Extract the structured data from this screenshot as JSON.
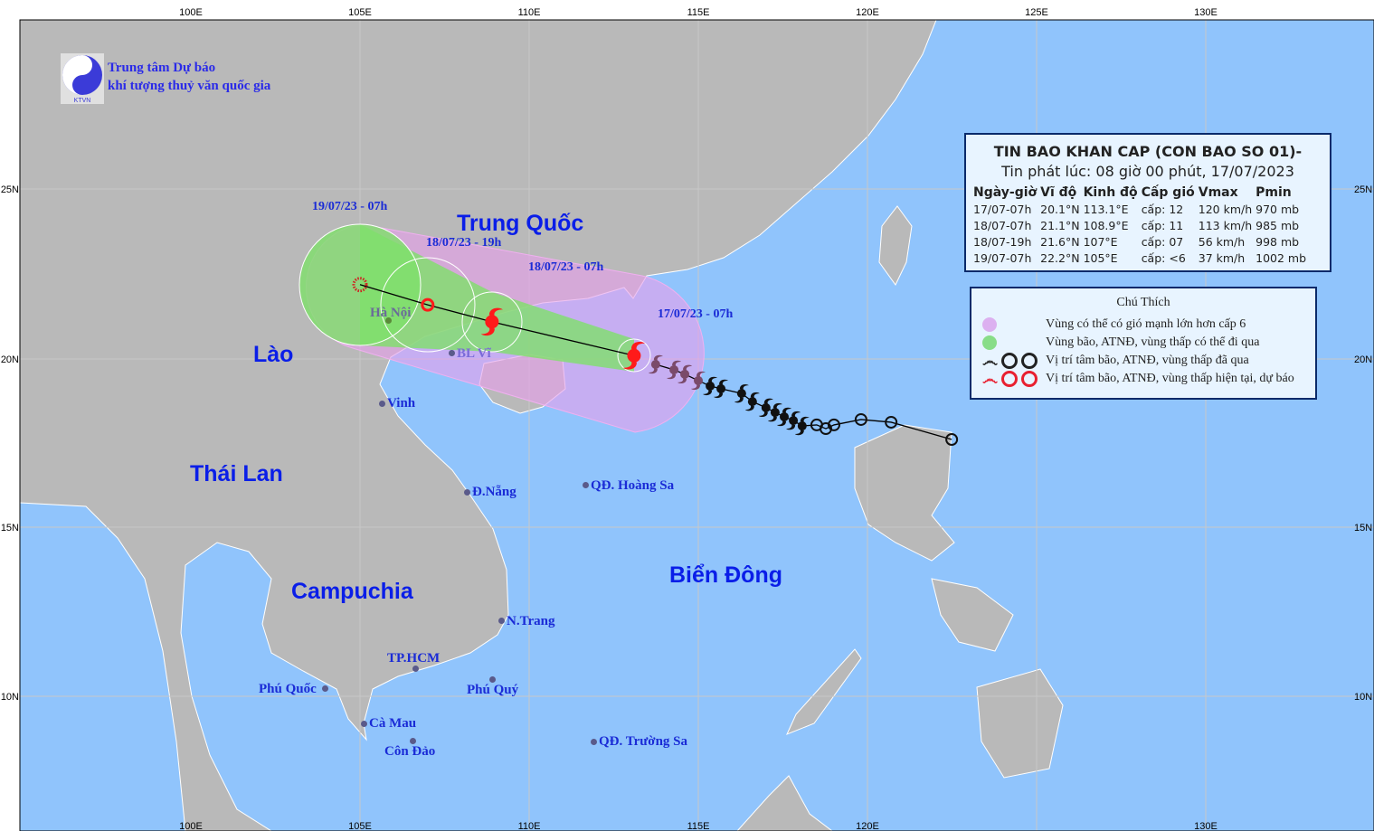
{
  "colors": {
    "land": "#b9b9b9",
    "sea": "#90c4fc",
    "wind_zone": "#e6a0ec",
    "storm_zone": "#7ee06a",
    "current": "#ff1a1a",
    "past": "#111111",
    "label": "#1a2bd6"
  },
  "header": {
    "org_line1": "Trung tâm Dự báo",
    "org_line2": "khí tượng thuỷ văn quốc gia",
    "logo_text": "KTVN"
  },
  "axes": {
    "lon_labels_top": [
      "100E",
      "105E",
      "110E",
      "115E",
      "120E",
      "125E",
      "130E"
    ],
    "lon_labels_bottom": [
      "100E",
      "105E",
      "110E",
      "115E",
      "120E",
      "130E"
    ],
    "lat_labels": [
      "25N",
      "20N",
      "15N",
      "10N"
    ]
  },
  "info": {
    "title": "TIN BAO KHAN CAP (CON BAO SO 01)-",
    "issued": "Tin phát lúc: 08 giờ 00 phút, 17/07/2023",
    "columns": [
      "Ngày-giờ",
      "Vĩ độ",
      "Kinh độ",
      "Cấp gió",
      "Vmax",
      "Pmin"
    ],
    "rows": [
      [
        "17/07-07h",
        "20.1°N",
        "113.1°E",
        "cấp: 12",
        "120 km/h",
        "970 mb"
      ],
      [
        "18/07-07h",
        "21.1°N",
        "108.9°E",
        "cấp: 11",
        "113 km/h",
        "985 mb"
      ],
      [
        "18/07-19h",
        "21.6°N",
        "107°E",
        "cấp: 07",
        "56 km/h",
        "998 mb"
      ],
      [
        "19/07-07h",
        "22.2°N",
        "105°E",
        "cấp: <6",
        "37 km/h",
        "1002 mb"
      ]
    ]
  },
  "legend": {
    "title": "Chú Thích",
    "items": [
      "Vùng có thể có gió mạnh lớn hơn cấp 6",
      "Vùng bão, ATNĐ, vùng thấp có thể đi qua",
      "Vị trí tâm bão, ATNĐ, vùng thấp đã qua",
      "Vị trí tâm bão, ATNĐ, vùng thấp hiện tại, dự báo"
    ]
  },
  "forecast_points": [
    {
      "label": "17/07/23 - 07h",
      "lon": 113.1,
      "lat": 20.1,
      "icon": "storm"
    },
    {
      "label": "18/07/23 - 07h",
      "lon": 108.9,
      "lat": 21.1,
      "icon": "storm"
    },
    {
      "label": "18/07/23 - 19h",
      "lon": 107.0,
      "lat": 21.6,
      "icon": "depression"
    },
    {
      "label": "19/07/23 - 07h",
      "lon": 105.0,
      "lat": 22.2,
      "icon": "low"
    }
  ],
  "past_track": [
    {
      "lon": 113.74,
      "lat": 19.84,
      "icon": "storm"
    },
    {
      "lon": 114.28,
      "lat": 19.68,
      "icon": "storm"
    },
    {
      "lon": 114.6,
      "lat": 19.55,
      "icon": "storm"
    },
    {
      "lon": 115.0,
      "lat": 19.36,
      "icon": "storm"
    },
    {
      "lon": 115.35,
      "lat": 19.2,
      "icon": "storm"
    },
    {
      "lon": 115.67,
      "lat": 19.12,
      "icon": "storm"
    },
    {
      "lon": 116.28,
      "lat": 18.98,
      "icon": "storm"
    },
    {
      "lon": 116.6,
      "lat": 18.74,
      "icon": "storm"
    },
    {
      "lon": 117.0,
      "lat": 18.56,
      "icon": "storm"
    },
    {
      "lon": 117.27,
      "lat": 18.42,
      "icon": "storm"
    },
    {
      "lon": 117.54,
      "lat": 18.29,
      "icon": "storm"
    },
    {
      "lon": 117.81,
      "lat": 18.18,
      "icon": "storm"
    },
    {
      "lon": 118.07,
      "lat": 18.02,
      "icon": "storm"
    },
    {
      "lon": 118.5,
      "lat": 18.05,
      "icon": "depression"
    },
    {
      "lon": 118.77,
      "lat": 17.94,
      "icon": "depression"
    },
    {
      "lon": 119.01,
      "lat": 18.05,
      "icon": "depression"
    },
    {
      "lon": 119.81,
      "lat": 18.21,
      "icon": "depression"
    },
    {
      "lon": 120.7,
      "lat": 18.13,
      "icon": "depression"
    },
    {
      "lon": 122.49,
      "lat": 17.62,
      "icon": "depression"
    }
  ],
  "regions": {
    "china": "Trung Quốc",
    "laos": "Lào",
    "thailand": "Thái Lan",
    "cambodia": "Campuchia",
    "east_sea": "Biển Đông"
  },
  "cities": {
    "hanoi": "Hà Nội",
    "blvi": "BL Vĩ",
    "vinh": "Vinh",
    "danang": "Đ.Nẵng",
    "hoangsa": "QĐ. Hoàng Sa",
    "nhatrang": "N.Trang",
    "tphcm": "TP.HCM",
    "phuquoc": "Phú Quốc",
    "phuquy": "Phú Quý",
    "camau": "Cà Mau",
    "condao": "Côn Đảo",
    "truongsa": "QĐ. Trường Sa"
  }
}
